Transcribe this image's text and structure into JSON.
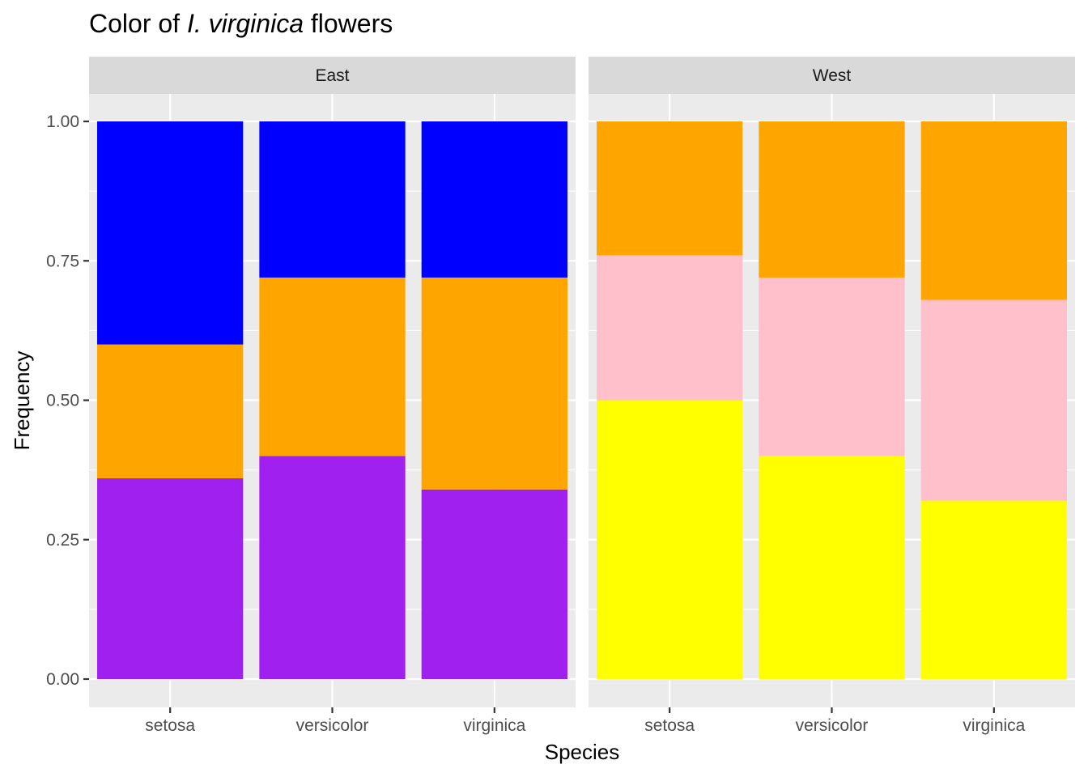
{
  "chart_data": {
    "type": "bar",
    "stacked": true,
    "title_parts": [
      "Color of ",
      "I. virginica",
      " flowers"
    ],
    "xlabel": "Species",
    "ylabel": "Frequency",
    "ylim": [
      0,
      1.05
    ],
    "y_ticks": [
      "0.00",
      "0.25",
      "0.50",
      "0.75",
      "1.00"
    ],
    "grid": true,
    "legend": "none",
    "categories": [
      "setosa",
      "versicolor",
      "virginica"
    ],
    "facets": [
      {
        "label": "East",
        "stack": [
          {
            "color": "#a020f0",
            "values": [
              0.36,
              0.4,
              0.34
            ]
          },
          {
            "color": "#ffa500",
            "values": [
              0.24,
              0.32,
              0.38
            ]
          },
          {
            "color": "#0000ff",
            "values": [
              0.4,
              0.28,
              0.28
            ]
          }
        ]
      },
      {
        "label": "West",
        "stack": [
          {
            "color": "#ffff00",
            "values": [
              0.5,
              0.4,
              0.32
            ]
          },
          {
            "color": "#ffc0cb",
            "values": [
              0.26,
              0.32,
              0.36
            ]
          },
          {
            "color": "#ffa500",
            "values": [
              0.24,
              0.28,
              0.32
            ]
          }
        ]
      }
    ]
  }
}
